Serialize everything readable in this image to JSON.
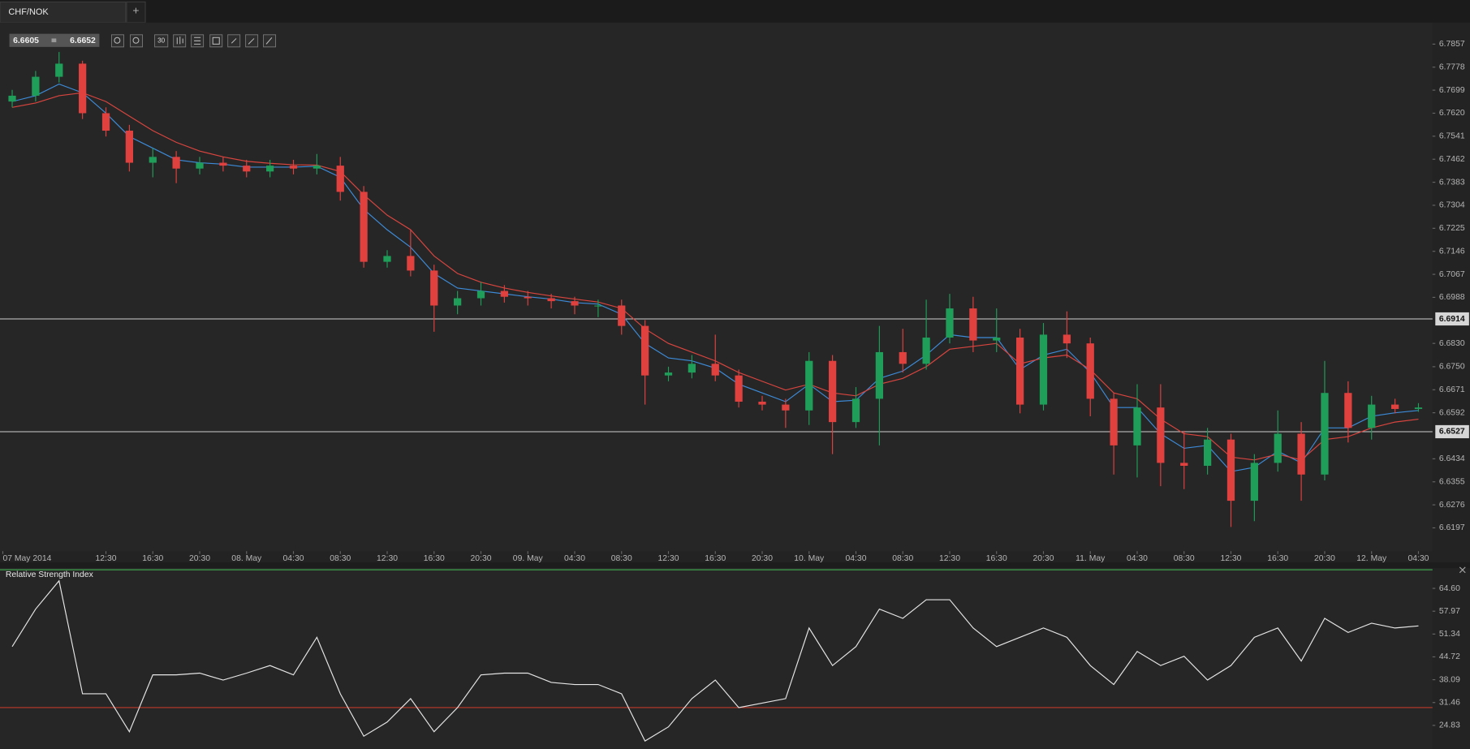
{
  "tab": {
    "title": "CHF/NOK",
    "add": "+"
  },
  "quote": {
    "bid": "6.6605",
    "ask": "6.6652"
  },
  "toolbar": {
    "period": "30"
  },
  "chart_data": [
    {
      "type": "candlestick",
      "x": [
        0,
        2,
        4,
        6,
        8,
        10,
        12,
        14,
        16,
        18,
        20,
        22,
        24,
        26,
        28,
        30,
        32,
        34,
        36,
        38,
        40,
        42,
        44,
        46,
        48,
        50,
        52,
        54,
        56,
        58,
        60,
        62,
        64,
        66,
        68,
        70,
        72,
        74,
        76,
        78,
        80,
        82,
        84,
        86,
        88,
        90,
        92,
        94,
        96,
        98,
        100,
        102,
        104,
        106,
        108,
        110,
        112,
        114,
        116,
        118,
        120
      ],
      "open": [
        6.766,
        6.768,
        6.7745,
        6.779,
        6.762,
        6.756,
        6.745,
        6.747,
        6.743,
        6.745,
        6.744,
        6.742,
        6.744,
        6.743,
        6.744,
        6.735,
        6.711,
        6.713,
        6.708,
        6.696,
        6.6985,
        6.701,
        6.699,
        6.6985,
        6.6975,
        6.696,
        6.696,
        6.689,
        6.672,
        6.673,
        6.676,
        6.672,
        6.663,
        6.662,
        6.66,
        6.677,
        6.656,
        6.664,
        6.68,
        6.676,
        6.685,
        6.695,
        6.684,
        6.685,
        6.662,
        6.686,
        6.683,
        6.664,
        6.648,
        6.661,
        6.642,
        6.641,
        6.65,
        6.629,
        6.642,
        6.652,
        6.638,
        6.666,
        6.654,
        6.662,
        6.6605
      ],
      "high": [
        6.77,
        6.7765,
        6.783,
        6.78,
        6.764,
        6.758,
        6.75,
        6.749,
        6.747,
        6.747,
        6.746,
        6.746,
        6.746,
        6.748,
        6.747,
        6.737,
        6.715,
        6.722,
        6.71,
        6.701,
        6.704,
        6.703,
        6.701,
        6.7,
        6.699,
        6.698,
        6.698,
        6.691,
        6.675,
        6.679,
        6.686,
        6.674,
        6.665,
        6.664,
        6.68,
        6.679,
        6.668,
        6.689,
        6.688,
        6.698,
        6.7,
        6.699,
        6.695,
        6.688,
        6.69,
        6.694,
        6.685,
        6.666,
        6.669,
        6.669,
        6.653,
        6.654,
        6.652,
        6.645,
        6.66,
        6.656,
        6.677,
        6.67,
        6.665,
        6.664,
        6.6625
      ],
      "low": [
        6.764,
        6.766,
        6.7725,
        6.76,
        6.754,
        6.742,
        6.74,
        6.738,
        6.741,
        6.742,
        6.74,
        6.74,
        6.741,
        6.741,
        6.732,
        6.709,
        6.709,
        6.706,
        6.687,
        6.693,
        6.696,
        6.697,
        6.696,
        6.695,
        6.693,
        6.692,
        6.686,
        6.662,
        6.67,
        6.671,
        6.67,
        6.661,
        6.66,
        6.654,
        6.655,
        6.645,
        6.654,
        6.648,
        6.673,
        6.674,
        6.683,
        6.68,
        6.68,
        6.659,
        6.66,
        6.678,
        6.658,
        6.638,
        6.637,
        6.634,
        6.633,
        6.638,
        6.62,
        6.622,
        6.639,
        6.629,
        6.636,
        6.649,
        6.65,
        6.659,
        6.6595
      ],
      "close": [
        6.768,
        6.7745,
        6.779,
        6.762,
        6.756,
        6.745,
        6.747,
        6.743,
        6.745,
        6.744,
        6.742,
        6.744,
        6.743,
        6.744,
        6.735,
        6.711,
        6.713,
        6.708,
        6.696,
        6.6985,
        6.701,
        6.699,
        6.6985,
        6.6975,
        6.696,
        6.696,
        6.689,
        6.672,
        6.673,
        6.676,
        6.672,
        6.663,
        6.662,
        6.66,
        6.677,
        6.656,
        6.664,
        6.68,
        6.676,
        6.685,
        6.695,
        6.684,
        6.685,
        6.662,
        6.686,
        6.683,
        6.664,
        6.648,
        6.661,
        6.642,
        6.641,
        6.65,
        6.629,
        6.642,
        6.652,
        6.638,
        6.666,
        6.654,
        6.662,
        6.6605,
        6.661
      ],
      "up_color": "#1f9e5a",
      "down_color": "#e0413f",
      "overlays": [
        {
          "color": "#3d8bd8",
          "values": [
            6.766,
            6.768,
            6.772,
            6.769,
            6.762,
            6.754,
            6.75,
            6.746,
            6.745,
            6.7445,
            6.7435,
            6.7435,
            6.7435,
            6.7438,
            6.74,
            6.729,
            6.722,
            6.716,
            6.707,
            6.702,
            6.701,
            6.7,
            6.699,
            6.6982,
            6.697,
            6.6965,
            6.693,
            6.683,
            6.678,
            6.677,
            6.6745,
            6.669,
            6.666,
            6.663,
            6.669,
            6.663,
            6.6635,
            6.671,
            6.6735,
            6.679,
            6.686,
            6.685,
            6.685,
            6.674,
            6.679,
            6.681,
            6.673,
            6.661,
            6.661,
            6.652,
            6.647,
            6.648,
            6.639,
            6.6405,
            6.646,
            6.642,
            6.654,
            6.654,
            6.658,
            6.6592,
            6.66
          ]
        },
        {
          "color": "#d9453f",
          "values": [
            6.764,
            6.7655,
            6.768,
            6.769,
            6.766,
            6.761,
            6.756,
            6.752,
            6.749,
            6.747,
            6.7455,
            6.7448,
            6.7443,
            6.7442,
            6.742,
            6.734,
            6.727,
            6.722,
            6.713,
            6.707,
            6.704,
            6.702,
            6.7005,
            6.6993,
            6.6982,
            6.6972,
            6.695,
            6.688,
            6.683,
            6.68,
            6.677,
            6.673,
            6.67,
            6.667,
            6.669,
            6.666,
            6.665,
            6.669,
            6.671,
            6.675,
            6.681,
            6.682,
            6.683,
            6.676,
            6.678,
            6.679,
            6.674,
            6.666,
            6.664,
            6.657,
            6.652,
            6.651,
            6.644,
            6.643,
            6.645,
            6.643,
            6.65,
            6.651,
            6.654,
            6.656,
            6.657
          ]
        }
      ],
      "price_lines": [
        6.6914,
        6.6527
      ],
      "xlim": [
        -0.8,
        121.2
      ],
      "xticks": [
        {
          "value": -0.8,
          "label": "07 May 2014"
        },
        {
          "value": 8,
          "label": "12:30"
        },
        {
          "value": 12,
          "label": "16:30"
        },
        {
          "value": 16,
          "label": "20:30"
        },
        {
          "value": 20,
          "label": "08. May"
        },
        {
          "value": 24,
          "label": "04:30"
        },
        {
          "value": 28,
          "label": "08:30"
        },
        {
          "value": 32,
          "label": "12:30"
        },
        {
          "value": 36,
          "label": "16:30"
        },
        {
          "value": 40,
          "label": "20:30"
        },
        {
          "value": 44,
          "label": "09. May"
        },
        {
          "value": 48,
          "label": "04:30"
        },
        {
          "value": 52,
          "label": "08:30"
        },
        {
          "value": 56,
          "label": "12:30"
        },
        {
          "value": 60,
          "label": "16:30"
        },
        {
          "value": 64,
          "label": "20:30"
        },
        {
          "value": 68,
          "label": "10. May"
        },
        {
          "value": 72,
          "label": "04:30"
        },
        {
          "value": 76,
          "label": "08:30"
        },
        {
          "value": 80,
          "label": "12:30"
        },
        {
          "value": 84,
          "label": "16:30"
        },
        {
          "value": 88,
          "label": "20:30"
        },
        {
          "value": 92,
          "label": "11. May"
        },
        {
          "value": 96,
          "label": "04:30"
        },
        {
          "value": 100,
          "label": "08:30"
        },
        {
          "value": 104,
          "label": "12:30"
        },
        {
          "value": 108,
          "label": "16:30"
        },
        {
          "value": 112,
          "label": "20:30"
        },
        {
          "value": 116,
          "label": "12. May"
        },
        {
          "value": 120,
          "label": "04:30"
        }
      ],
      "ylim": [
        6.6117,
        6.7931
      ],
      "yticks": [
        6.7857,
        6.7778,
        6.7699,
        {
          "value": 6.762,
          "label": "6.7620"
        },
        6.7541,
        6.7462,
        6.7383,
        6.7304,
        6.7225,
        6.7146,
        6.7067,
        6.6988,
        {
          "value": 6.683,
          "label": "6.6830"
        },
        {
          "value": 6.675,
          "label": "6.6750"
        },
        6.6671,
        6.6592,
        6.6434,
        6.6355,
        6.6276,
        6.6197
      ]
    },
    {
      "type": "line",
      "title": "Relative Strength Index",
      "color": "#e6e6e6",
      "x": [
        0,
        2,
        4,
        6,
        8,
        10,
        12,
        14,
        16,
        18,
        20,
        22,
        24,
        26,
        28,
        30,
        32,
        34,
        36,
        38,
        40,
        42,
        44,
        46,
        48,
        50,
        52,
        54,
        56,
        58,
        60,
        62,
        64,
        66,
        68,
        70,
        72,
        74,
        76,
        78,
        80,
        82,
        84,
        86,
        88,
        90,
        92,
        94,
        96,
        98,
        100,
        102,
        104,
        106,
        108,
        110,
        112,
        114,
        116,
        118,
        120
      ],
      "values": [
        47.7,
        58.6,
        66.8,
        34,
        34,
        23,
        39.5,
        39.5,
        40,
        38,
        40,
        42.2,
        39.5,
        50.4,
        34,
        21.7,
        25.8,
        32.6,
        23,
        30,
        39.5,
        40,
        40,
        37.3,
        36.7,
        36.7,
        34,
        20.3,
        24.4,
        32.6,
        38,
        30,
        31.3,
        32.6,
        53.1,
        42.2,
        47.7,
        58.6,
        55.9,
        61.3,
        61.3,
        53.1,
        47.7,
        50.4,
        53.1,
        50.4,
        42.2,
        36.7,
        46.3,
        42.2,
        44.9,
        38,
        42.2,
        50.4,
        53.1,
        43.5,
        55.9,
        51.8,
        54.5,
        53.1,
        53.7
      ],
      "levels": [
        {
          "value": 70,
          "color": "#3fa34d"
        },
        {
          "value": 30,
          "color": "#c0392b"
        }
      ],
      "xlim": [
        -0.8,
        121.2
      ],
      "ylim": [
        18,
        70.5
      ],
      "yticks": [
        {
          "value": 64.6,
          "label": "64.60"
        },
        57.97,
        51.34,
        44.72,
        38.09,
        31.46,
        24.83
      ]
    }
  ]
}
